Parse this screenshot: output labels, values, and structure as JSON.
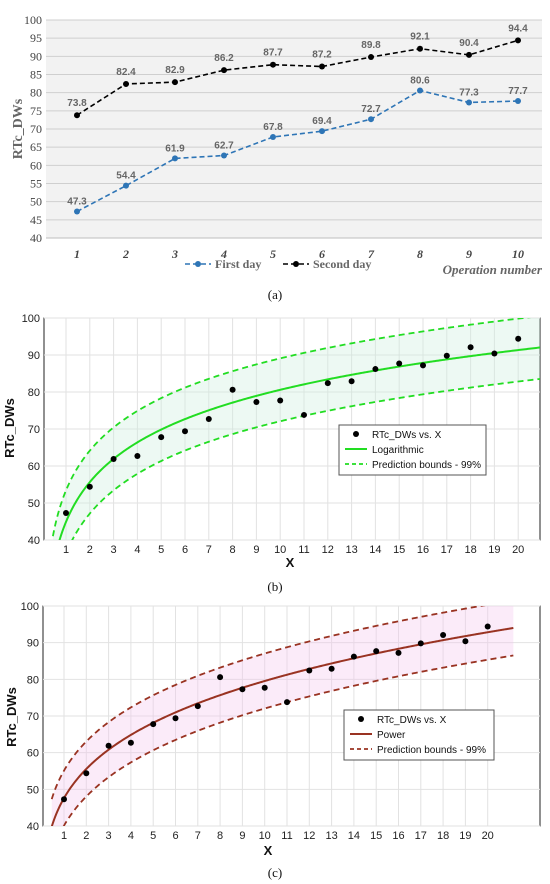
{
  "chart_data": [
    {
      "type": "line",
      "panel_caption": "(a)",
      "ylabel": "RTc_DWs",
      "xlabel": "Operation number",
      "x": [
        1,
        2,
        3,
        4,
        5,
        6,
        7,
        8,
        9,
        10
      ],
      "ylim": [
        40,
        100
      ],
      "yticks": [
        40,
        45,
        50,
        55,
        60,
        65,
        70,
        75,
        80,
        85,
        90,
        95,
        100
      ],
      "grid": true,
      "legend_placement": "bottom",
      "series": [
        {
          "name": "First day",
          "color": "#2e75b6",
          "values": [
            47.3,
            54.4,
            61.9,
            62.7,
            67.8,
            69.4,
            72.7,
            80.6,
            77.3,
            77.7
          ]
        },
        {
          "name": "Second day",
          "color": "#000000",
          "values": [
            73.8,
            82.4,
            82.9,
            86.2,
            87.7,
            87.2,
            89.8,
            92.1,
            90.4,
            94.4
          ]
        }
      ]
    },
    {
      "type": "scatter",
      "panel_caption": "(b)",
      "ylabel": "RTc_DWs",
      "xlabel": "X",
      "x": [
        1,
        2,
        3,
        4,
        5,
        6,
        7,
        8,
        9,
        10,
        11,
        12,
        13,
        14,
        15,
        16,
        17,
        18,
        19,
        20
      ],
      "ylim": [
        40,
        100
      ],
      "xlim": [
        0,
        21
      ],
      "yticks": [
        40,
        50,
        60,
        70,
        80,
        90,
        100
      ],
      "grid": true,
      "legend_placement": "center-right",
      "points": [
        47.3,
        54.4,
        61.9,
        62.7,
        67.8,
        69.4,
        72.7,
        80.6,
        77.3,
        77.7,
        73.8,
        82.4,
        82.9,
        86.2,
        87.7,
        87.2,
        89.8,
        92.1,
        90.4,
        94.4
      ],
      "fit": {
        "model": "logarithmic",
        "a": 44.9,
        "b": 15.5,
        "bound_offset": 8.5
      },
      "fit_color": "#22dd22",
      "band_color": "#cceedd",
      "legend": [
        "RTc_DWs vs. X",
        "Logarithmic",
        "Prediction bounds - 99%"
      ]
    },
    {
      "type": "scatter",
      "panel_caption": "(c)",
      "ylabel": "RTc_DWs",
      "xlabel": "X",
      "x": [
        1,
        2,
        3,
        4,
        5,
        6,
        7,
        8,
        9,
        10,
        11,
        12,
        13,
        14,
        15,
        16,
        17,
        18,
        19,
        20
      ],
      "ylim": [
        40,
        100
      ],
      "xlim": [
        0,
        21
      ],
      "yticks": [
        40,
        50,
        60,
        70,
        80,
        90,
        100
      ],
      "grid": true,
      "legend_placement": "center-right",
      "points": [
        47.3,
        54.4,
        61.9,
        62.7,
        67.8,
        69.4,
        72.7,
        80.6,
        77.3,
        77.7,
        73.8,
        82.4,
        82.9,
        86.2,
        87.7,
        87.2,
        89.8,
        92.1,
        90.4,
        94.4
      ],
      "fit": {
        "model": "power",
        "a": 47.6,
        "b": 0.223,
        "bound_offset": 7.5
      },
      "fit_color": "#993322",
      "band_color": "#f4c6ee",
      "legend": [
        "RTc_DWs vs. X",
        "Power",
        "Prediction bounds - 99%"
      ]
    }
  ]
}
